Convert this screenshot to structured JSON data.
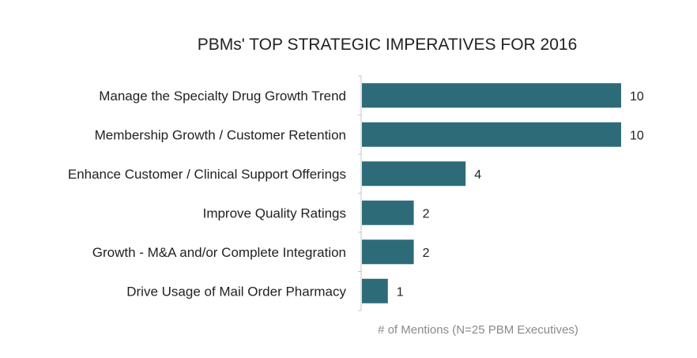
{
  "chart_data": {
    "type": "bar",
    "orientation": "horizontal",
    "title": "PBMs' TOP STRATEGIC IMPERATIVES FOR 2016",
    "xlabel": "# of Mentions (N=25 PBM Executives)",
    "ylabel": "",
    "categories": [
      "Manage the Specialty Drug Growth Trend",
      "Membership Growth / Customer Retention",
      "Enhance Customer / Clinical Support Offerings",
      "Improve Quality Ratings",
      "Growth - M&A and/or Complete Integration",
      "Drive Usage of Mail Order Pharmacy"
    ],
    "values": [
      10,
      10,
      4,
      2,
      2,
      1
    ],
    "xlim": [
      0,
      10
    ],
    "grid": false,
    "legend": "none",
    "colors": {
      "bar": "#2e6b78",
      "axis": "#c4c4c4"
    }
  }
}
